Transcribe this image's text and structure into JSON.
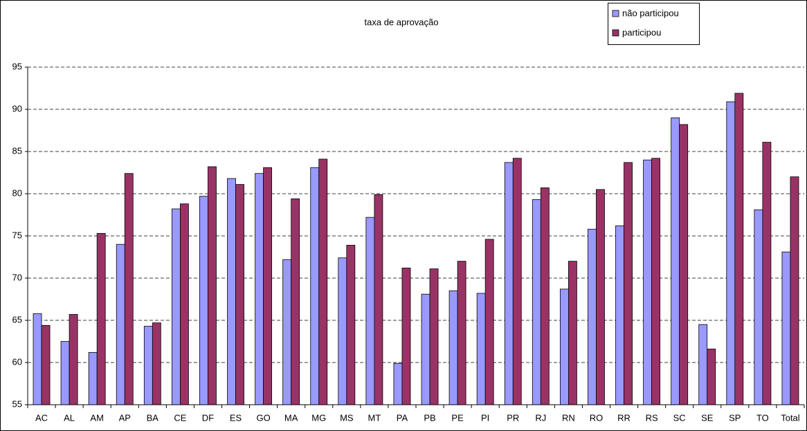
{
  "chart_data": {
    "type": "bar",
    "title": "taxa de aprovação",
    "categories": [
      "AC",
      "AL",
      "AM",
      "AP",
      "BA",
      "CE",
      "DF",
      "ES",
      "GO",
      "MA",
      "MG",
      "MS",
      "MT",
      "PA",
      "PB",
      "PE",
      "PI",
      "PR",
      "RJ",
      "RN",
      "RO",
      "RR",
      "RS",
      "SC",
      "SE",
      "SP",
      "TO",
      "Total"
    ],
    "series": [
      {
        "name": "não participou",
        "color": "#9999ff",
        "values": [
          65.8,
          62.5,
          61.2,
          74.0,
          64.3,
          78.2,
          79.7,
          81.8,
          82.4,
          72.2,
          83.1,
          72.4,
          77.2,
          59.9,
          68.1,
          68.5,
          68.2,
          83.7,
          79.3,
          68.7,
          75.8,
          76.2,
          84.0,
          89.0,
          64.5,
          90.9,
          78.1,
          73.1
        ]
      },
      {
        "name": "participou",
        "color": "#993366",
        "values": [
          64.4,
          65.7,
          75.3,
          82.4,
          64.7,
          78.8,
          83.2,
          81.1,
          83.1,
          79.4,
          84.1,
          73.9,
          79.9,
          71.2,
          71.1,
          72.0,
          74.6,
          84.2,
          80.7,
          72.0,
          80.5,
          83.7,
          84.2,
          88.2,
          61.6,
          91.9,
          86.1,
          82.0
        ]
      }
    ],
    "ylim": [
      55,
      95
    ],
    "yticks": [
      55,
      60,
      65,
      70,
      75,
      80,
      85,
      90,
      95
    ],
    "grid": true,
    "legend": "top-right"
  }
}
